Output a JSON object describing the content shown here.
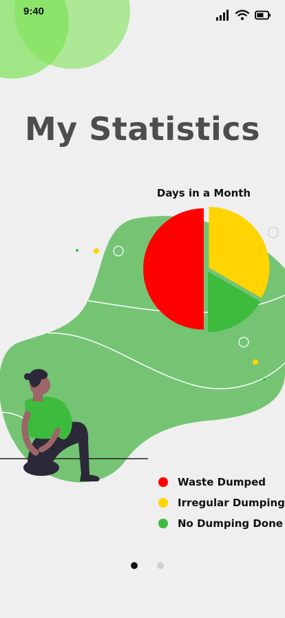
{
  "status_bar": {
    "time": "9:40",
    "icons": [
      "signal-icon",
      "wifi-icon",
      "battery-icon"
    ]
  },
  "page": {
    "title": "My Statistics"
  },
  "chart_data": {
    "type": "pie",
    "title": "Days in a Month",
    "categories": [
      "Waste Dumped",
      "Irregular Dumping",
      "No Dumping Done"
    ],
    "values": [
      15,
      10,
      5
    ],
    "colors": [
      "#ff0000",
      "#ffd400",
      "#3dbb3d"
    ],
    "legend": "bottom-right"
  },
  "legend": {
    "items": [
      {
        "label": "Waste Dumped",
        "color": "#ff0000"
      },
      {
        "label": "Irregular Dumping",
        "color": "#ffd400"
      },
      {
        "label": "No Dumping Done",
        "color": "#3dbb3d"
      }
    ]
  },
  "pager": {
    "count": 2,
    "active_index": 0,
    "active_color": "#111111",
    "inactive_color": "#d3d0c8"
  },
  "colors": {
    "background": "#efefef",
    "blob_green": "#74c474",
    "bubble_green": "#7fe25a",
    "title_gray": "#4d4d4d"
  }
}
